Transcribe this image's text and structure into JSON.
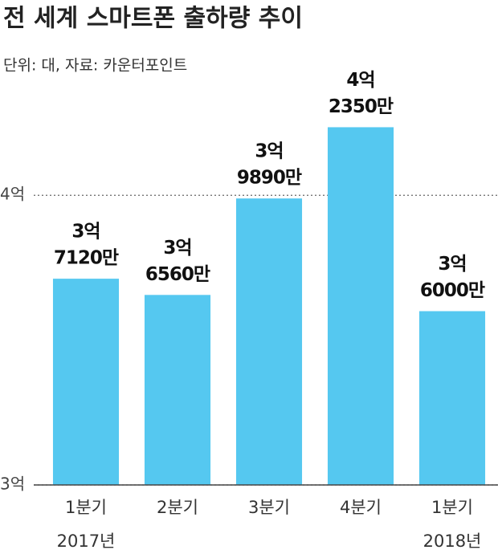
{
  "chart_data": {
    "type": "bar",
    "title": "전 세계 스마트폰 출하량 추이",
    "subtitle": "단위: 대, 자료: 카운터포인트",
    "categories": [
      [
        "1분기",
        "2017년"
      ],
      [
        "2분기"
      ],
      [
        "3분기"
      ],
      [
        "4분기"
      ],
      [
        "1분기",
        "2018년"
      ]
    ],
    "values": [
      371200000,
      365600000,
      398900000,
      423500000,
      360000000
    ],
    "value_labels": [
      [
        "3억",
        "7120만"
      ],
      [
        "3억",
        "6560만"
      ],
      [
        "3억",
        "9890만"
      ],
      [
        "4억",
        "2350만"
      ],
      [
        "3억",
        "6000만"
      ]
    ],
    "color": "#55c8f0",
    "ylim": [
      300000000,
      430000000
    ],
    "yticks": [
      {
        "value": 300000000,
        "label": "3억"
      },
      {
        "value": 400000000,
        "label": "4억"
      }
    ],
    "grid": true
  }
}
